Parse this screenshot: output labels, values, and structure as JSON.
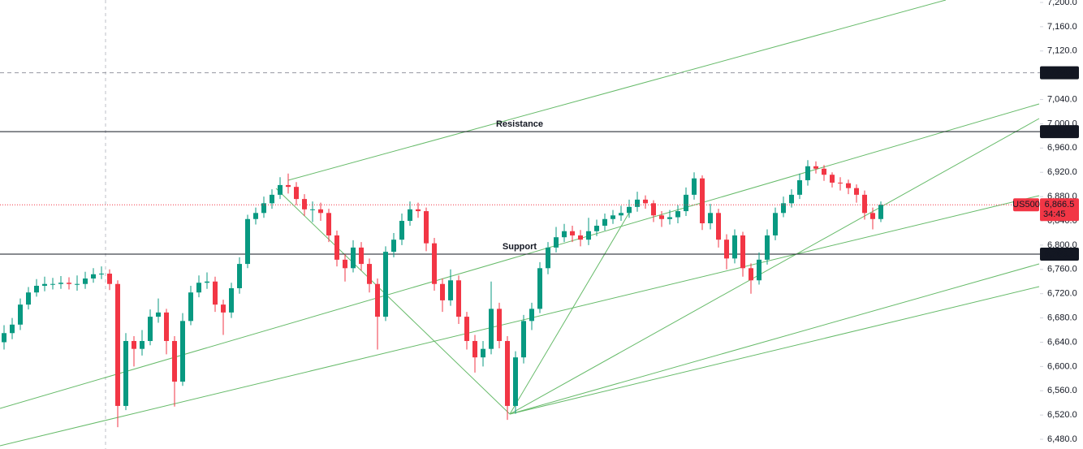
{
  "chart_data": {
    "type": "candlestick",
    "up_color": "#089981",
    "down_color": "#f23645",
    "ylim": [
      6464,
      7204
    ],
    "yticks": [
      {
        "value": 6480,
        "label": "6,480.0"
      },
      {
        "value": 6520,
        "label": "6,520.0"
      },
      {
        "value": 6560,
        "label": "6,560.0"
      },
      {
        "value": 6600,
        "label": "6,600.0"
      },
      {
        "value": 6640,
        "label": "6,640.0"
      },
      {
        "value": 6680,
        "label": "6,680.0"
      },
      {
        "value": 6720,
        "label": "6,720.0"
      },
      {
        "value": 6760,
        "label": "6,760.0"
      },
      {
        "value": 6800,
        "label": "6,800.0"
      },
      {
        "value": 6840,
        "label": "6,840.0"
      },
      {
        "value": 6880,
        "label": "6,880.0"
      },
      {
        "value": 6920,
        "label": "6,920.0"
      },
      {
        "value": 6960,
        "label": "6,960.0"
      },
      {
        "value": 7000,
        "label": "7,000.0"
      },
      {
        "value": 7040,
        "label": "7,040.0"
      },
      {
        "value": 7120,
        "label": "7,120.0"
      },
      {
        "value": 7160,
        "label": "7,160.0"
      },
      {
        "value": 7200,
        "label": "7,200.0"
      }
    ],
    "price_lines": [
      {
        "value": 7084,
        "label": "7,084.0",
        "style": "dashed",
        "color": "#9598a1"
      },
      {
        "value": 6987,
        "label": "6,987.0",
        "style": "solid",
        "color": "#131722"
      },
      {
        "value": 6785.1,
        "label": "6,785.1",
        "style": "solid",
        "color": "#131722"
      }
    ],
    "annotations": [
      {
        "text": "Resistance",
        "value": 6987,
        "color": "#2962ff"
      },
      {
        "text": "Support",
        "value": 6785.1,
        "color": "#f23645"
      }
    ],
    "last_price": {
      "value": 6866.5,
      "label": "6,866.5",
      "symbol": "US500",
      "countdown": "34:45",
      "color": "#f23645"
    },
    "open": [
      6640,
      6655,
      6669,
      6702,
      6722,
      6733,
      6736,
      6736,
      6738,
      6736,
      6736,
      6745,
      6752,
      6753,
      6736,
      6535,
      6642,
      6629,
      6642,
      6682,
      6689,
      6642,
      6575,
      6675,
      6722,
      6738,
      6740,
      6702,
      6689,
      6729,
      6769,
      6843,
      6853,
      6869,
      6883,
      6899,
      6896,
      6876,
      6859,
      6859,
      6853,
      6816,
      6776,
      6762,
      6796,
      6769,
      6736,
      6682,
      6789,
      6809,
      6840,
      6859,
      6856,
      6803,
      6736,
      6709,
      6742,
      6682,
      6642,
      6615,
      6629,
      6695,
      6642,
      6535,
      6615,
      6675,
      6695,
      6762,
      6796,
      6813,
      6823,
      6816,
      6809,
      6823,
      6832,
      6843,
      6849,
      6853,
      6863,
      6875,
      6869,
      6849,
      6843,
      6846,
      6856,
      6883,
      6910,
      6836,
      6853,
      6809,
      6778,
      6816,
      6762,
      6742,
      6776,
      6816,
      6853,
      6869,
      6883,
      6907,
      6930,
      6926,
      6916,
      6903,
      6902,
      6894,
      6883,
      6853,
      6843
    ],
    "high": [
      6668,
      6680,
      6712,
      6731,
      6744,
      6748,
      6746,
      6749,
      6747,
      6750,
      6756,
      6762,
      6765,
      6760,
      6742,
      6655,
      6650,
      6660,
      6694,
      6712,
      6695,
      6650,
      6688,
      6733,
      6750,
      6755,
      6748,
      6710,
      6738,
      6780,
      6850,
      6862,
      6880,
      6892,
      6912,
      6918,
      6904,
      6884,
      6872,
      6870,
      6860,
      6824,
      6785,
      6808,
      6805,
      6778,
      6745,
      6798,
      6820,
      6852,
      6872,
      6870,
      6862,
      6812,
      6745,
      6760,
      6750,
      6690,
      6652,
      6642,
      6740,
      6705,
      6650,
      6625,
      6685,
      6705,
      6772,
      6805,
      6830,
      6835,
      6832,
      6825,
      6845,
      6842,
      6852,
      6858,
      6865,
      6875,
      6888,
      6882,
      6874,
      6856,
      6858,
      6866,
      6895,
      6920,
      6915,
      6868,
      6860,
      6818,
      6826,
      6822,
      6770,
      6788,
      6826,
      6862,
      6880,
      6892,
      6918,
      6940,
      6938,
      6932,
      6920,
      6912,
      6908,
      6900,
      6890,
      6862,
      6872
    ],
    "low": [
      6628,
      6645,
      6660,
      6694,
      6715,
      6724,
      6727,
      6728,
      6727,
      6725,
      6728,
      6738,
      6744,
      6726,
      6500,
      6528,
      6600,
      6618,
      6635,
      6672,
      6620,
      6534,
      6568,
      6668,
      6714,
      6728,
      6690,
      6652,
      6680,
      6720,
      6762,
      6834,
      6845,
      6860,
      6876,
      6885,
      6866,
      6848,
      6838,
      6840,
      6805,
      6765,
      6740,
      6755,
      6758,
      6722,
      6628,
      6675,
      6780,
      6800,
      6832,
      6845,
      6790,
      6725,
      6690,
      6700,
      6670,
      6628,
      6590,
      6600,
      6620,
      6630,
      6512,
      6522,
      6605,
      6660,
      6688,
      6752,
      6788,
      6805,
      6805,
      6798,
      6800,
      6815,
      6824,
      6835,
      6840,
      6845,
      6855,
      6860,
      6838,
      6830,
      6834,
      6836,
      6848,
      6875,
      6825,
      6826,
      6796,
      6760,
      6770,
      6748,
      6720,
      6735,
      6768,
      6808,
      6846,
      6862,
      6876,
      6898,
      6918,
      6906,
      6895,
      6890,
      6884,
      6870,
      6842,
      6826,
      6838
    ],
    "close": [
      6655,
      6669,
      6702,
      6722,
      6733,
      6736,
      6736,
      6738,
      6736,
      6736,
      6745,
      6752,
      6753,
      6736,
      6535,
      6642,
      6629,
      6642,
      6682,
      6689,
      6642,
      6575,
      6675,
      6722,
      6738,
      6740,
      6702,
      6689,
      6729,
      6769,
      6843,
      6853,
      6869,
      6883,
      6899,
      6896,
      6876,
      6859,
      6859,
      6853,
      6816,
      6776,
      6762,
      6796,
      6769,
      6736,
      6682,
      6789,
      6809,
      6840,
      6859,
      6856,
      6803,
      6736,
      6709,
      6742,
      6682,
      6642,
      6615,
      6629,
      6695,
      6642,
      6535,
      6615,
      6675,
      6695,
      6762,
      6796,
      6813,
      6823,
      6816,
      6809,
      6823,
      6832,
      6843,
      6849,
      6853,
      6863,
      6875,
      6869,
      6849,
      6843,
      6846,
      6856,
      6883,
      6910,
      6836,
      6853,
      6809,
      6778,
      6816,
      6762,
      6742,
      6776,
      6816,
      6853,
      6869,
      6883,
      6907,
      6930,
      6926,
      6916,
      6903,
      6902,
      6894,
      6883,
      6853,
      6843,
      6866.5
    ]
  }
}
